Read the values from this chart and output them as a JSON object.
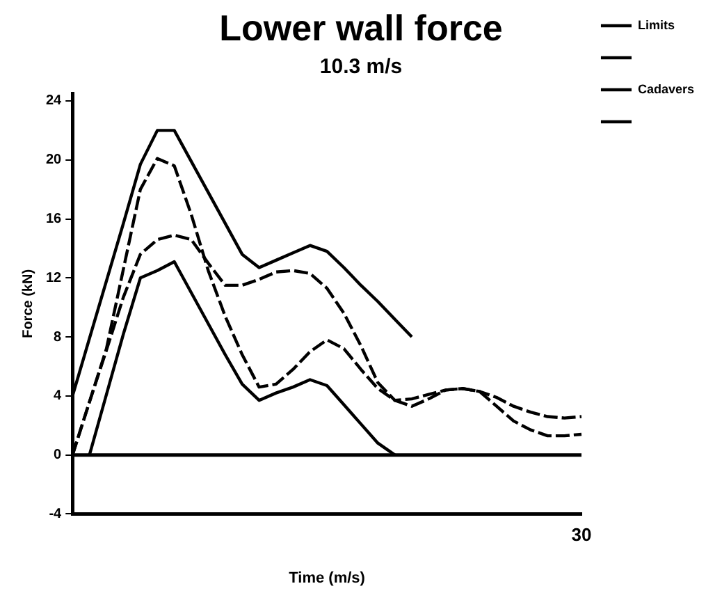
{
  "chart_data": {
    "type": "line",
    "title": "Lower wall force",
    "subtitle": "10.3 m/s",
    "xlabel": "Time (m/s)",
    "ylabel": "Force (kN)",
    "categories": [
      null,
      null,
      null,
      null,
      null,
      null,
      null,
      null,
      null,
      null,
      null,
      null,
      null,
      null,
      null,
      null,
      null,
      null,
      null,
      null,
      null,
      null,
      null,
      null,
      null,
      null,
      null,
      null,
      null,
      null,
      null
    ],
    "annotations": [
      "30"
    ],
    "ylim": [
      -4,
      24.5
    ],
    "yticks": [
      -4,
      0,
      4,
      8,
      12,
      16,
      20,
      24
    ],
    "grid": false,
    "legend": "top right",
    "marker": "none",
    "ref_lines": [
      {
        "axis": "y",
        "value": 0,
        "color": "#000000"
      }
    ],
    "series": [
      {
        "name": "Limits",
        "color": "#000000",
        "line_style": "solid",
        "values": [
          4,
          7.9,
          11.8,
          15.7,
          19.7,
          22,
          22,
          19.9,
          17.8,
          15.7,
          13.6,
          12.7,
          13.2,
          13.7,
          14.2,
          13.8,
          12.7,
          11.5,
          10.4,
          9.2,
          8,
          null,
          null,
          null,
          null,
          null,
          null,
          null,
          null,
          null,
          null
        ]
      },
      {
        "color": "#000000",
        "line_style": "solid",
        "values": [
          null,
          0,
          4.1,
          8.2,
          12,
          12.5,
          13.1,
          11,
          8.9,
          6.8,
          4.8,
          3.7,
          4.2,
          4.6,
          5.1,
          4.7,
          3.4,
          2.1,
          0.8,
          0,
          null,
          null,
          null,
          null,
          null,
          null,
          null,
          null,
          null,
          null,
          null
        ]
      },
      {
        "name": "Cadavers",
        "color": "#000000",
        "line_style": "dashed",
        "values": [
          0,
          3.6,
          7.2,
          12.6,
          18,
          20.1,
          19.6,
          16.3,
          12.5,
          9.4,
          6.8,
          4.6,
          4.8,
          5.8,
          7,
          7.8,
          7.2,
          5.8,
          4.5,
          3.7,
          3.3,
          3.8,
          4.4,
          4.5,
          4.3,
          3.3,
          2.3,
          1.7,
          1.3,
          1.3,
          1.4
        ]
      },
      {
        "color": "#000000",
        "line_style": "dashed",
        "values": [
          0,
          3.6,
          7.1,
          10.7,
          13.6,
          14.6,
          14.9,
          14.6,
          13,
          11.5,
          11.5,
          11.9,
          12.4,
          12.5,
          12.3,
          11.3,
          9.6,
          7.4,
          4.9,
          3.7,
          3.8,
          4.1,
          4.4,
          4.5,
          4.3,
          3.9,
          3.3,
          2.9,
          2.6,
          2.5,
          2.6
        ]
      }
    ]
  }
}
